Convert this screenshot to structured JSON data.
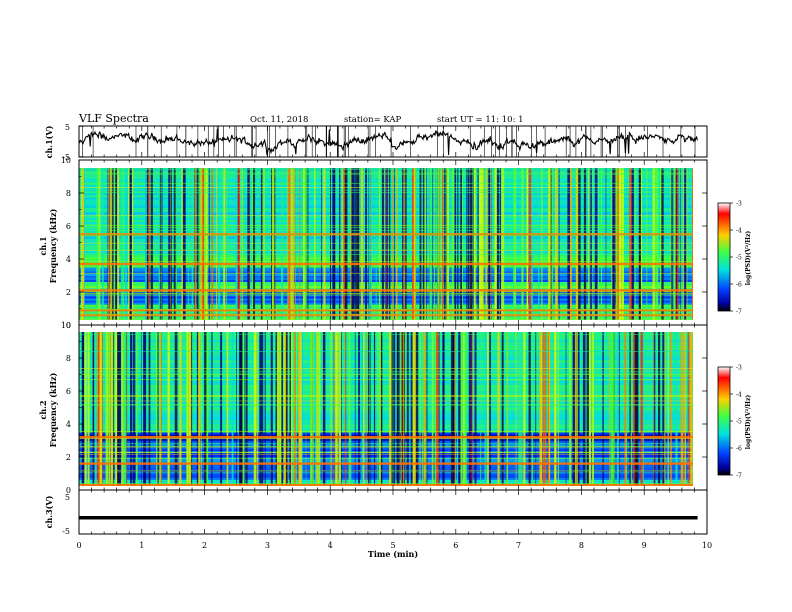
{
  "header": {
    "title": "VLF Spectra",
    "date": "Oct. 11, 2018",
    "station": "station= KAP",
    "start_ut": "start  UT =   11: 10: 1"
  },
  "chart_data": [
    {
      "type": "line",
      "panel": "ch1-voltage",
      "ylabel": "ch.1(V)",
      "ylim": [
        -5,
        5
      ],
      "yticks": [
        "5",
        "-5"
      ],
      "xlim": [
        0,
        10
      ],
      "series_color": "#000000"
    },
    {
      "type": "heatmap",
      "panel": "ch1-spectrogram",
      "ylabel_top": "ch.1",
      "ylabel": "Frequency (kHz)",
      "ylim": [
        0,
        10
      ],
      "yticks": [
        "0",
        "2",
        "4",
        "6",
        "8",
        "10"
      ],
      "xlim": [
        0,
        9.85
      ],
      "strong_bands_khz": [
        0.6,
        0.9,
        2.1,
        3.7,
        5.5
      ],
      "colorbar": {
        "label": "log(PSD)(V²/Hz)",
        "range": [
          -7,
          -3
        ],
        "ticks": [
          "-3",
          "-4",
          "-5",
          "-6",
          "-7"
        ]
      }
    },
    {
      "type": "heatmap",
      "panel": "ch2-spectrogram",
      "ylabel_top": "ch.2",
      "ylabel": "Frequency (kHz)",
      "ylim": [
        0,
        10
      ],
      "yticks": [
        "0",
        "2",
        "4",
        "6",
        "8",
        "10"
      ],
      "xlim": [
        0,
        9.85
      ],
      "strong_bands_khz": [
        0.3,
        1.6,
        3.2
      ],
      "colorbar": {
        "label": "log(PSD)(V²/Hz)",
        "range": [
          -7,
          -3
        ],
        "ticks": [
          "-3",
          "-4",
          "-5",
          "-6",
          "-7"
        ]
      }
    },
    {
      "type": "line",
      "panel": "ch3-voltage",
      "ylabel": "ch.3(V)",
      "ylim": [
        -5,
        5
      ],
      "yticks": [
        "5",
        "-5"
      ],
      "xlim": [
        0,
        10
      ],
      "x": [
        0,
        9.85
      ],
      "y": [
        -1.3,
        -1.3
      ],
      "xlabel": "Time (min)",
      "xticks": [
        "0",
        "1",
        "2",
        "3",
        "4",
        "5",
        "6",
        "7",
        "8",
        "9",
        "10"
      ]
    }
  ]
}
